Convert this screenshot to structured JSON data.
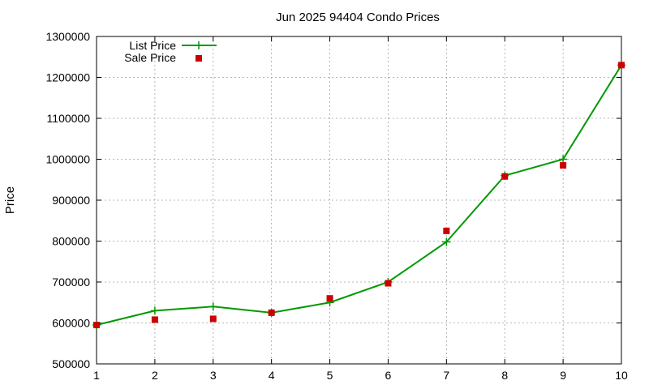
{
  "chart_data": {
    "type": "line",
    "title": "Jun 2025 94404 Condo Prices",
    "xlabel": "",
    "ylabel": "Price",
    "x": [
      1,
      2,
      3,
      4,
      5,
      6,
      7,
      8,
      9,
      10
    ],
    "xlim": [
      1,
      10
    ],
    "ylim": [
      500000,
      1300000
    ],
    "xticks": [
      "1",
      "2",
      "3",
      "4",
      "5",
      "6",
      "7",
      "8",
      "9",
      "10"
    ],
    "yticks": [
      "500000",
      "600000",
      "700000",
      "800000",
      "900000",
      "1000000",
      "1100000",
      "1200000",
      "1300000"
    ],
    "grid": true,
    "legend": "top-left",
    "series": [
      {
        "name": "List Price",
        "style": "line-with-plus-markers",
        "color": "#009900",
        "values": [
          595000,
          630000,
          640000,
          625000,
          650000,
          700000,
          798000,
          960000,
          1000000,
          1230000
        ]
      },
      {
        "name": "Sale Price",
        "style": "square-markers",
        "color": "#cc0000",
        "values": [
          595000,
          608000,
          610000,
          625000,
          660000,
          697000,
          825000,
          958000,
          985000,
          1230000
        ]
      }
    ]
  }
}
